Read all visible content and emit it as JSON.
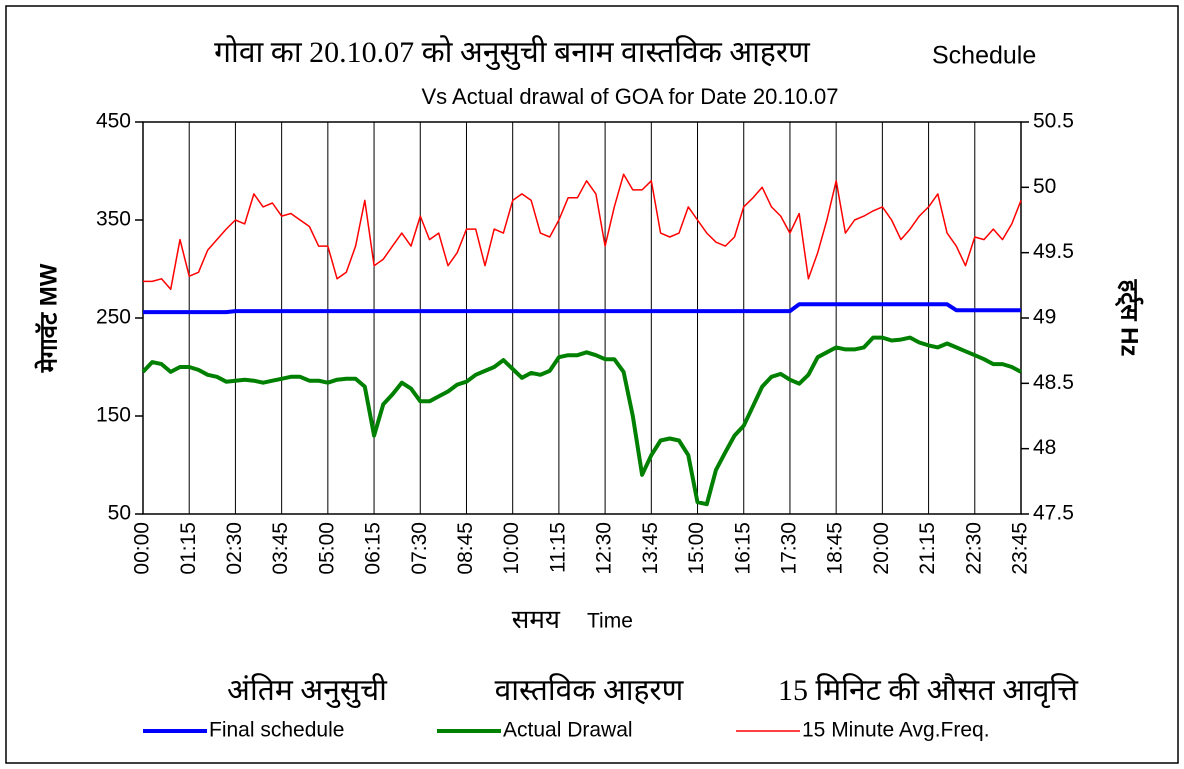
{
  "chart_data": {
    "type": "line",
    "title": "गोवा का 20.10.07 को अनुसुची बनाम वास्तविक आहरण",
    "title_end": "Schedule",
    "subtitle": "Vs Actual drawal of GOA for Date 20.10.07",
    "y_label": "मेगावॅट  MW",
    "y2_label": "हर्ट्स Hz",
    "x_label_hindi": "समय",
    "x_label": "Time",
    "grid": "x",
    "legend": "bottom",
    "categories": [
      "00:00",
      null,
      null,
      null,
      null,
      "01:15",
      null,
      null,
      null,
      null,
      "02:30",
      null,
      null,
      null,
      null,
      "03:45",
      null,
      null,
      null,
      null,
      "05:00",
      null,
      null,
      null,
      null,
      "06:15",
      null,
      null,
      null,
      null,
      "07:30",
      null,
      null,
      null,
      null,
      "08:45",
      null,
      null,
      null,
      null,
      "10:00",
      null,
      null,
      null,
      null,
      "11:15",
      null,
      null,
      null,
      null,
      "12:30",
      null,
      null,
      null,
      null,
      "13:45",
      null,
      null,
      null,
      null,
      "15:00",
      null,
      null,
      null,
      null,
      "16:15",
      null,
      null,
      null,
      null,
      "17:30",
      null,
      null,
      null,
      null,
      "18:45",
      null,
      null,
      null,
      null,
      "20:00",
      null,
      null,
      null,
      null,
      "21:15",
      null,
      null,
      null,
      null,
      "22:30",
      null,
      null,
      null,
      null,
      "23:45"
    ],
    "ylim": [
      50,
      450
    ],
    "yticks": [
      50,
      150,
      250,
      350,
      450
    ],
    "y2lim": [
      47.5,
      50.5
    ],
    "y2ticks": [
      47.5,
      48,
      48.5,
      49,
      49.5,
      50,
      50.5
    ],
    "series": [
      {
        "name": "Final schedule",
        "legend_hindi": "अंतिम अनुसुची",
        "color": "#0000ff",
        "width": 4,
        "values": [
          256,
          256,
          256,
          256,
          256,
          256,
          256,
          256,
          256,
          256,
          257,
          257,
          257,
          257,
          257,
          257,
          257,
          257,
          257,
          257,
          257,
          257,
          257,
          257,
          257,
          257,
          257,
          257,
          257,
          257,
          257,
          257,
          257,
          257,
          257,
          257,
          257,
          257,
          257,
          257,
          257,
          257,
          257,
          257,
          257,
          257,
          257,
          257,
          257,
          257,
          257,
          257,
          257,
          257,
          257,
          257,
          257,
          257,
          257,
          257,
          257,
          257,
          257,
          257,
          257,
          257,
          257,
          257,
          257,
          257,
          257,
          264,
          264,
          264,
          264,
          264,
          264,
          264,
          264,
          264,
          264,
          264,
          264,
          264,
          264,
          264,
          264,
          264,
          258,
          258,
          258,
          258,
          258,
          258,
          258,
          258
        ]
      },
      {
        "name": "Actual Drawal",
        "legend_hindi": "वास्तविक आहरण",
        "color": "#008000",
        "width": 4,
        "values": [
          195,
          205,
          203,
          195,
          200,
          200,
          197,
          192,
          190,
          185,
          186,
          187,
          186,
          184,
          186,
          188,
          190,
          190,
          186,
          186,
          184,
          187,
          188,
          188,
          180,
          130,
          162,
          172,
          184,
          178,
          165,
          165,
          170,
          175,
          182,
          185,
          192,
          196,
          200,
          207,
          198,
          189,
          194,
          192,
          196,
          210,
          212,
          212,
          215,
          212,
          208,
          208,
          195,
          150,
          90,
          110,
          125,
          127,
          125,
          110,
          62,
          60,
          95,
          113,
          130,
          140,
          160,
          180,
          190,
          193,
          187,
          183,
          192,
          210,
          215,
          220,
          218,
          218,
          220,
          230,
          230,
          227,
          228,
          230,
          225,
          222,
          220,
          224,
          220,
          216,
          212,
          208,
          203,
          203,
          200,
          195
        ]
      },
      {
        "name": "15 Minute Avg.Freq.",
        "legend_hindi": "15 मिनिट की औसत आवृत्ति",
        "color": "#ff0000",
        "width": 1.5,
        "axis": "y2",
        "values": [
          49.28,
          49.28,
          49.3,
          49.22,
          49.6,
          49.32,
          49.35,
          49.52,
          49.6,
          49.68,
          49.75,
          49.72,
          49.95,
          49.85,
          49.88,
          49.78,
          49.8,
          49.75,
          49.7,
          49.55,
          49.55,
          49.3,
          49.35,
          49.55,
          49.9,
          49.4,
          49.45,
          49.55,
          49.65,
          49.55,
          49.78,
          49.6,
          49.65,
          49.4,
          49.5,
          49.68,
          49.68,
          49.4,
          49.68,
          49.65,
          49.9,
          49.95,
          49.9,
          49.65,
          49.62,
          49.75,
          49.92,
          49.92,
          50.05,
          49.95,
          49.55,
          49.85,
          50.1,
          49.98,
          49.98,
          50.05,
          49.65,
          49.62,
          49.65,
          49.85,
          49.75,
          49.65,
          49.58,
          49.55,
          49.62,
          49.85,
          49.92,
          50.0,
          49.85,
          49.78,
          49.65,
          49.8,
          49.3,
          49.5,
          49.75,
          50.05,
          49.65,
          49.75,
          49.78,
          49.82,
          49.85,
          49.75,
          49.6,
          49.68,
          49.78,
          49.85,
          49.95,
          49.65,
          49.55,
          49.4,
          49.62,
          49.6,
          49.68,
          49.6,
          49.72,
          49.9
        ]
      }
    ]
  }
}
